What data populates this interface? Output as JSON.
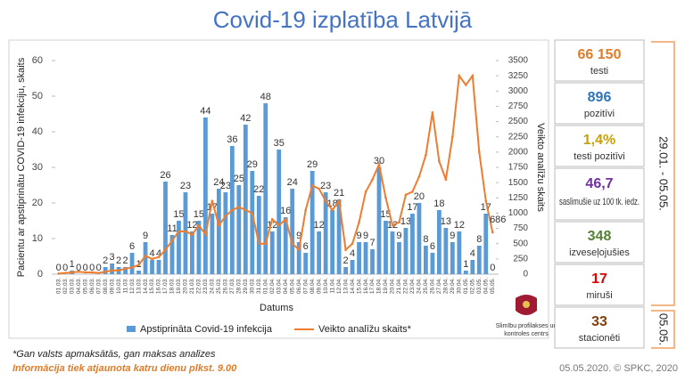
{
  "chart_data": {
    "type": "bar-line",
    "title": "Covid-19 izplatība Latvijā",
    "y_label": "Pacientu ar apstiprinātu COVID-19 infekciju, skaits",
    "y2_label": "Veikto analīžu skaits",
    "x_label": "Datums",
    "categories": [
      "01.03.",
      "02.03.",
      "03.03.",
      "04.03.",
      "05.03.",
      "06.03.",
      "07.03.",
      "08.03.",
      "09.03.",
      "10.03.",
      "11.03.",
      "12.03.",
      "13.03.",
      "14.03.",
      "15.03.",
      "16.03.",
      "17.03.",
      "18.03.",
      "19.03.",
      "20.03.",
      "21.03.",
      "22.03.",
      "23.03.",
      "24.03.",
      "25.03.",
      "26.03.",
      "27.03.",
      "28.03.",
      "29.03.",
      "30.03.",
      "31.03.",
      "01.04.",
      "02.04.",
      "03.04.",
      "04.04.",
      "05.04.",
      "06.04.",
      "07.04.",
      "08.04.",
      "09.04.",
      "10.04.",
      "11.04.",
      "12.04.",
      "13.04.",
      "14.04.",
      "15.04.",
      "16.04.",
      "17.04.",
      "18.04.",
      "19.04.",
      "20.04.",
      "21.04.",
      "22.04.",
      "23.04.",
      "24.04.",
      "25.04.",
      "26.04.",
      "27.04.",
      "28.04.",
      "29.04.",
      "30.04.",
      "01.05.",
      "02.05.",
      "03.05.",
      "04.05.",
      "05.05."
    ],
    "series": [
      {
        "name": "Apstiprināta Covid-19 infekcija",
        "color": "#5b9bd5",
        "kind": "bar",
        "values": [
          0,
          0,
          1,
          0,
          0,
          0,
          0,
          2,
          3,
          2,
          2,
          6,
          1,
          9,
          4,
          4,
          26,
          11,
          15,
          23,
          12,
          15,
          44,
          17,
          24,
          23,
          36,
          25,
          42,
          29,
          22,
          48,
          12,
          35,
          16,
          24,
          9,
          6,
          29,
          12,
          23,
          18,
          21,
          2,
          4,
          9,
          9,
          7,
          30,
          15,
          12,
          9,
          13,
          17,
          20,
          8,
          6,
          18,
          13,
          9,
          12,
          1,
          4,
          8,
          17,
          0
        ]
      },
      {
        "name": "Veikto analīžu skaits*",
        "color": "#ed7d31",
        "kind": "line",
        "axis": "y2",
        "values": [
          10,
          20,
          30,
          40,
          30,
          30,
          20,
          40,
          60,
          60,
          90,
          110,
          150,
          300,
          250,
          280,
          400,
          550,
          700,
          700,
          650,
          800,
          650,
          1200,
          800,
          950,
          1050,
          1100,
          1050,
          1000,
          500,
          500,
          900,
          800,
          900,
          500,
          400,
          1050,
          1450,
          1400,
          1200,
          1050,
          1200,
          400,
          500,
          850,
          1350,
          1550,
          1800,
          1250,
          800,
          850,
          1300,
          1350,
          1600,
          1950,
          2650,
          1850,
          1550,
          2250,
          3250,
          3100,
          3250,
          2000,
          1200,
          686
        ],
        "labeled_index": 65
      }
    ],
    "ylim": [
      0,
      60
    ],
    "yticks": [
      0,
      10,
      20,
      30,
      40,
      50,
      60
    ],
    "y2lim": [
      0,
      3500
    ],
    "y2ticks": [
      0,
      250,
      500,
      750,
      1000,
      1250,
      1500,
      1750,
      2000,
      2250,
      2500,
      2750,
      3000,
      3250,
      3500
    ]
  },
  "stats": [
    {
      "value": "66 150",
      "label": "testi",
      "color": "#e07b28"
    },
    {
      "value": "896",
      "label": "pozitīvi",
      "color": "#2e75b6"
    },
    {
      "value": "1,4%",
      "label": "testi pozitīvi",
      "color": "#c9a100"
    },
    {
      "value": "46,7",
      "label": "saslimušie uz 100 tk. iedz.",
      "color": "#7030a0"
    },
    {
      "value": "348",
      "label": "izveseļojušies",
      "color": "#548235"
    },
    {
      "value": "17",
      "label": "miruši",
      "color": "#e00000"
    },
    {
      "value": "33",
      "label": "stacionēti",
      "color": "#843c0c"
    }
  ],
  "period_label": "29.01. - 05.05.",
  "day_label": "05.05.",
  "logo_text": [
    "Slimību profilakses un",
    "kontroles centrs"
  ],
  "footnote": "*Gan valsts apmaksātās, gan maksas analīzes",
  "update_note": "Informācija tiek atjaunota katru dienu plkst. 9.00",
  "source": "05.05.2020. © SPKC, 2020"
}
